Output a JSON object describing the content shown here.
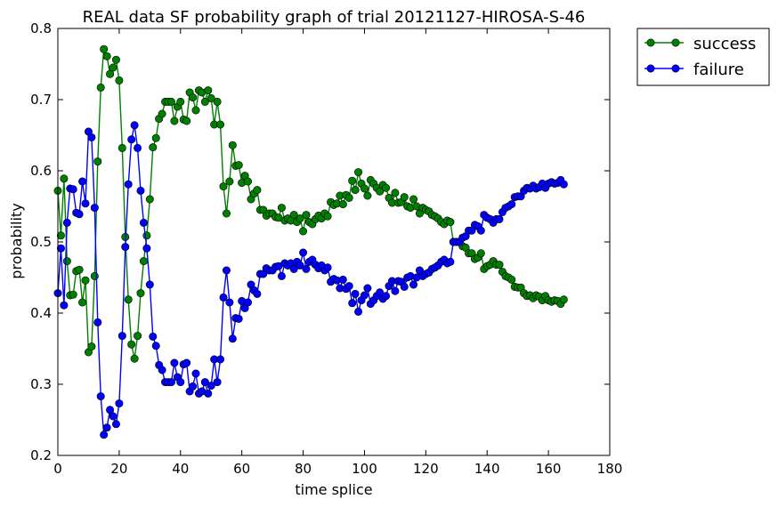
{
  "chart_data": {
    "type": "line",
    "title": "REAL data SF probability graph of trial 20121127-HIROSA-S-46",
    "xlabel": "time splice",
    "ylabel": "probability",
    "xlim": [
      0,
      180
    ],
    "ylim": [
      0.2,
      0.8
    ],
    "x_ticks": [
      0,
      20,
      40,
      60,
      80,
      100,
      120,
      140,
      160,
      180
    ],
    "y_ticks": [
      0.2,
      0.3,
      0.4,
      0.5,
      0.6,
      0.7,
      0.8
    ],
    "grid": false,
    "legend_position": "outside-top-right",
    "series": [
      {
        "name": "success",
        "color": "#008000",
        "marker": "circle",
        "values": [
          0.572,
          0.509,
          0.589,
          0.473,
          0.425,
          0.426,
          0.459,
          0.461,
          0.415,
          0.446,
          0.345,
          0.353,
          0.452,
          0.613,
          0.717,
          0.771,
          0.761,
          0.736,
          0.745,
          0.756,
          0.727,
          0.632,
          0.507,
          0.419,
          0.356,
          0.336,
          0.368,
          0.428,
          0.473,
          0.509,
          0.56,
          0.633,
          0.646,
          0.673,
          0.68,
          0.697,
          0.697,
          0.697,
          0.67,
          0.69,
          0.697,
          0.672,
          0.67,
          0.71,
          0.703,
          0.685,
          0.713,
          0.71,
          0.697,
          0.713,
          0.702,
          0.665,
          0.697,
          0.665,
          0.578,
          0.54,
          0.585,
          0.636,
          0.607,
          0.608,
          0.583,
          0.593,
          0.585,
          0.56,
          0.568,
          0.573,
          0.545,
          0.545,
          0.537,
          0.54,
          0.54,
          0.535,
          0.534,
          0.548,
          0.53,
          0.533,
          0.53,
          0.538,
          0.528,
          0.533,
          0.515,
          0.538,
          0.528,
          0.525,
          0.532,
          0.537,
          0.533,
          0.54,
          0.536,
          0.556,
          0.552,
          0.554,
          0.565,
          0.553,
          0.566,
          0.562,
          0.586,
          0.573,
          0.598,
          0.582,
          0.575,
          0.565,
          0.587,
          0.582,
          0.576,
          0.571,
          0.58,
          0.576,
          0.562,
          0.555,
          0.569,
          0.555,
          0.556,
          0.563,
          0.55,
          0.548,
          0.56,
          0.55,
          0.54,
          0.548,
          0.545,
          0.543,
          0.538,
          0.536,
          0.533,
          0.528,
          0.525,
          0.53,
          0.528,
          0.5,
          0.5,
          0.5,
          0.494,
          0.492,
          0.484,
          0.484,
          0.476,
          0.478,
          0.484,
          0.462,
          0.466,
          0.468,
          0.473,
          0.468,
          0.468,
          0.458,
          0.452,
          0.45,
          0.447,
          0.437,
          0.436,
          0.436,
          0.428,
          0.424,
          0.425,
          0.421,
          0.425,
          0.423,
          0.418,
          0.424,
          0.418,
          0.416,
          0.418,
          0.417,
          0.413,
          0.419
        ]
      },
      {
        "name": "failure",
        "color": "#0000ff",
        "marker": "circle",
        "values": [
          0.428,
          0.491,
          0.411,
          0.527,
          0.575,
          0.574,
          0.541,
          0.539,
          0.585,
          0.554,
          0.655,
          0.647,
          0.548,
          0.387,
          0.283,
          0.229,
          0.239,
          0.264,
          0.255,
          0.244,
          0.273,
          0.368,
          0.493,
          0.581,
          0.644,
          0.664,
          0.632,
          0.572,
          0.527,
          0.491,
          0.44,
          0.367,
          0.354,
          0.327,
          0.32,
          0.303,
          0.303,
          0.303,
          0.33,
          0.31,
          0.303,
          0.328,
          0.33,
          0.29,
          0.297,
          0.315,
          0.287,
          0.29,
          0.303,
          0.287,
          0.298,
          0.335,
          0.303,
          0.335,
          0.422,
          0.46,
          0.415,
          0.364,
          0.393,
          0.392,
          0.417,
          0.407,
          0.415,
          0.44,
          0.432,
          0.427,
          0.455,
          0.455,
          0.463,
          0.46,
          0.46,
          0.465,
          0.466,
          0.452,
          0.47,
          0.467,
          0.47,
          0.462,
          0.472,
          0.467,
          0.485,
          0.462,
          0.472,
          0.475,
          0.468,
          0.463,
          0.467,
          0.46,
          0.464,
          0.444,
          0.448,
          0.446,
          0.435,
          0.447,
          0.434,
          0.438,
          0.414,
          0.427,
          0.402,
          0.418,
          0.425,
          0.435,
          0.413,
          0.418,
          0.424,
          0.429,
          0.42,
          0.424,
          0.438,
          0.445,
          0.431,
          0.445,
          0.444,
          0.437,
          0.45,
          0.452,
          0.44,
          0.45,
          0.46,
          0.452,
          0.455,
          0.457,
          0.462,
          0.464,
          0.467,
          0.472,
          0.475,
          0.47,
          0.472,
          0.5,
          0.5,
          0.5,
          0.506,
          0.508,
          0.516,
          0.516,
          0.524,
          0.522,
          0.516,
          0.538,
          0.534,
          0.532,
          0.527,
          0.532,
          0.532,
          0.542,
          0.548,
          0.55,
          0.553,
          0.563,
          0.564,
          0.564,
          0.572,
          0.576,
          0.575,
          0.579,
          0.575,
          0.577,
          0.582,
          0.576,
          0.582,
          0.584,
          0.582,
          0.583,
          0.587,
          0.581
        ]
      }
    ]
  }
}
